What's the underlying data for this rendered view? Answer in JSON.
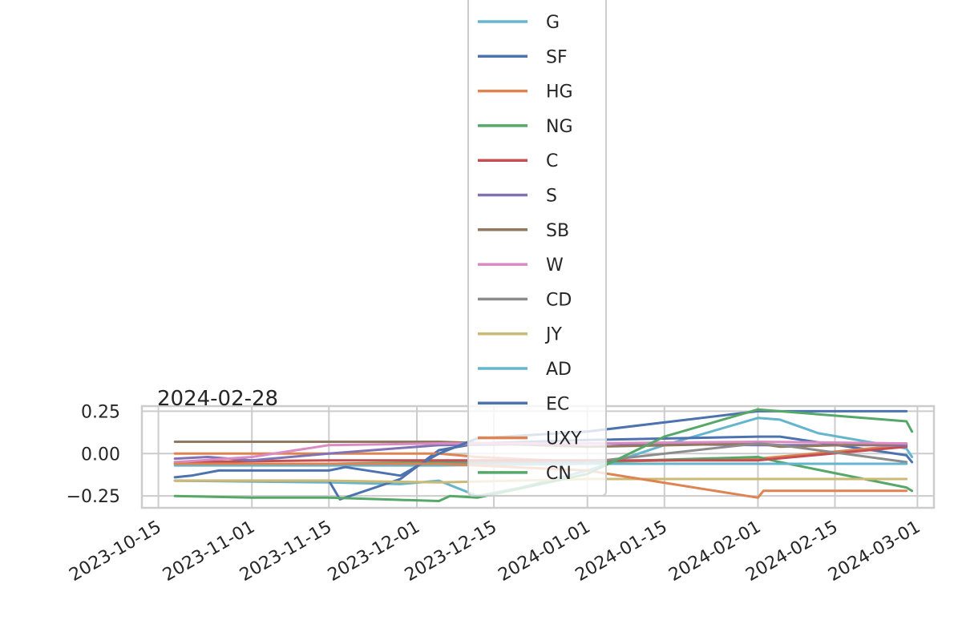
{
  "chart_data": {
    "type": "line",
    "title": "2024-02-28",
    "xlabel": "",
    "ylabel": "",
    "xlim": [
      "2023-10-12",
      "2024-03-04"
    ],
    "ylim": [
      -0.32,
      0.28
    ],
    "x_ticks": [
      "2023-10-15",
      "2023-11-01",
      "2023-11-15",
      "2023-12-01",
      "2023-12-15",
      "2024-01-01",
      "2024-01-15",
      "2024-02-01",
      "2024-02-15",
      "2024-03-01"
    ],
    "y_ticks": [
      0.25,
      0.0,
      -0.25
    ],
    "y_tick_labels": [
      "0.25",
      "0.00",
      "−0.25"
    ],
    "grid": true,
    "legend": {
      "placement": "top-center",
      "entries": [
        "G",
        "SF",
        "HG",
        "NG",
        "C",
        "S",
        "SB",
        "W",
        "CD",
        "JY",
        "AD",
        "EC",
        "UXY",
        "CN"
      ]
    },
    "series": [
      {
        "name": "G",
        "color": "#64b5cd",
        "points": [
          [
            "2023-10-18",
            -0.16
          ],
          [
            "2023-11-15",
            -0.17
          ],
          [
            "2023-11-28",
            -0.18
          ],
          [
            "2023-12-05",
            -0.16
          ],
          [
            "2023-12-12",
            -0.25
          ],
          [
            "2023-12-20",
            -0.2
          ],
          [
            "2024-01-01",
            -0.1
          ],
          [
            "2024-01-15",
            0.05
          ],
          [
            "2024-02-01",
            0.21
          ],
          [
            "2024-02-05",
            0.2
          ],
          [
            "2024-02-12",
            0.12
          ],
          [
            "2024-02-28",
            0.03
          ],
          [
            "2024-02-29",
            -0.02
          ]
        ]
      },
      {
        "name": "SF",
        "color": "#4c72b0",
        "points": [
          [
            "2023-10-18",
            -0.16
          ],
          [
            "2023-10-26",
            -0.16
          ],
          [
            "2023-11-01",
            -0.16
          ],
          [
            "2023-11-15",
            -0.16
          ],
          [
            "2023-11-17",
            -0.27
          ],
          [
            "2023-11-28",
            -0.15
          ],
          [
            "2023-12-05",
            0.02
          ],
          [
            "2023-12-12",
            0.06
          ],
          [
            "2024-01-01",
            0.08
          ],
          [
            "2024-02-01",
            0.1
          ],
          [
            "2024-02-05",
            0.1
          ],
          [
            "2024-02-28",
            -0.01
          ],
          [
            "2024-02-29",
            -0.05
          ]
        ]
      },
      {
        "name": "HG",
        "color": "#dd8452",
        "points": [
          [
            "2023-10-18",
            0.0
          ],
          [
            "2023-11-15",
            0.0
          ],
          [
            "2023-11-28",
            0.0
          ],
          [
            "2023-12-05",
            0.0
          ],
          [
            "2023-12-12",
            -0.02
          ],
          [
            "2024-01-01",
            -0.05
          ],
          [
            "2024-02-01",
            -0.03
          ],
          [
            "2024-02-28",
            0.05
          ]
        ]
      },
      {
        "name": "NG",
        "color": "#55a868",
        "points": [
          [
            "2023-10-18",
            -0.06
          ],
          [
            "2023-11-15",
            -0.06
          ],
          [
            "2023-12-05",
            -0.05
          ],
          [
            "2024-01-01",
            -0.05
          ],
          [
            "2024-02-01",
            -0.02
          ],
          [
            "2024-02-05",
            -0.05
          ],
          [
            "2024-02-28",
            -0.2
          ],
          [
            "2024-02-29",
            -0.22
          ]
        ]
      },
      {
        "name": "C",
        "color": "#c44e52",
        "points": [
          [
            "2023-10-18",
            -0.05
          ],
          [
            "2023-11-15",
            -0.04
          ],
          [
            "2023-12-05",
            -0.04
          ],
          [
            "2024-01-01",
            -0.04
          ],
          [
            "2024-02-01",
            -0.04
          ],
          [
            "2024-02-28",
            0.04
          ]
        ]
      },
      {
        "name": "S",
        "color": "#8172b3",
        "points": [
          [
            "2023-10-18",
            -0.03
          ],
          [
            "2023-10-24",
            -0.02
          ],
          [
            "2023-11-01",
            -0.04
          ],
          [
            "2023-11-15",
            0.0
          ],
          [
            "2023-12-05",
            0.05
          ],
          [
            "2024-01-01",
            0.06
          ],
          [
            "2024-02-01",
            0.05
          ],
          [
            "2024-02-28",
            0.05
          ]
        ]
      },
      {
        "name": "SB",
        "color": "#937860",
        "points": [
          [
            "2023-10-18",
            0.07
          ],
          [
            "2023-11-15",
            0.07
          ],
          [
            "2023-12-05",
            0.07
          ],
          [
            "2024-01-01",
            0.04
          ],
          [
            "2024-02-01",
            0.06
          ],
          [
            "2024-02-05",
            0.04
          ],
          [
            "2024-02-28",
            0.06
          ]
        ]
      },
      {
        "name": "W",
        "color": "#da8bc3",
        "points": [
          [
            "2023-10-18",
            -0.05
          ],
          [
            "2023-11-01",
            -0.02
          ],
          [
            "2023-11-15",
            0.05
          ],
          [
            "2023-12-05",
            0.06
          ],
          [
            "2024-01-01",
            0.06
          ],
          [
            "2024-02-01",
            0.07
          ],
          [
            "2024-02-28",
            0.06
          ]
        ]
      },
      {
        "name": "CD",
        "color": "#8c8c8c",
        "points": [
          [
            "2023-10-18",
            -0.06
          ],
          [
            "2023-11-15",
            -0.06
          ],
          [
            "2023-12-05",
            -0.06
          ],
          [
            "2024-01-01",
            -0.05
          ],
          [
            "2024-02-01",
            0.06
          ],
          [
            "2024-02-05",
            0.05
          ],
          [
            "2024-02-28",
            -0.05
          ]
        ]
      },
      {
        "name": "JY",
        "color": "#ccb974",
        "points": [
          [
            "2023-10-18",
            -0.16
          ],
          [
            "2023-11-15",
            -0.16
          ],
          [
            "2023-12-05",
            -0.17
          ],
          [
            "2024-01-01",
            -0.15
          ],
          [
            "2024-02-01",
            -0.15
          ],
          [
            "2024-02-28",
            -0.15
          ]
        ]
      },
      {
        "name": "AD",
        "color": "#64b5cd",
        "points": [
          [
            "2023-10-18",
            -0.07
          ],
          [
            "2023-11-15",
            -0.07
          ],
          [
            "2023-12-05",
            -0.07
          ],
          [
            "2024-01-01",
            -0.06
          ],
          [
            "2024-02-01",
            -0.06
          ],
          [
            "2024-02-28",
            -0.06
          ]
        ]
      },
      {
        "name": "EC",
        "color": "#4c72b0",
        "points": [
          [
            "2023-10-18",
            -0.14
          ],
          [
            "2023-10-21",
            -0.13
          ],
          [
            "2023-10-26",
            -0.1
          ],
          [
            "2023-11-15",
            -0.1
          ],
          [
            "2023-11-18",
            -0.08
          ],
          [
            "2023-11-28",
            -0.13
          ],
          [
            "2023-12-05",
            0.0
          ],
          [
            "2023-12-12",
            0.09
          ],
          [
            "2024-01-01",
            0.13
          ],
          [
            "2024-02-01",
            0.25
          ],
          [
            "2024-02-28",
            0.25
          ]
        ]
      },
      {
        "name": "UXY",
        "color": "#dd8452",
        "points": [
          [
            "2023-10-18",
            -0.06
          ],
          [
            "2023-11-15",
            -0.06
          ],
          [
            "2023-12-05",
            -0.06
          ],
          [
            "2024-01-01",
            -0.1
          ],
          [
            "2024-02-01",
            -0.26
          ],
          [
            "2024-02-02",
            -0.22
          ],
          [
            "2024-02-28",
            -0.22
          ]
        ]
      },
      {
        "name": "CN",
        "color": "#55a868",
        "points": [
          [
            "2023-10-18",
            -0.25
          ],
          [
            "2023-11-01",
            -0.26
          ],
          [
            "2023-11-15",
            -0.26
          ],
          [
            "2023-12-05",
            -0.28
          ],
          [
            "2023-12-07",
            -0.25
          ],
          [
            "2023-12-12",
            -0.26
          ],
          [
            "2024-01-01",
            -0.12
          ],
          [
            "2024-01-15",
            0.1
          ],
          [
            "2024-02-01",
            0.26
          ],
          [
            "2024-02-05",
            0.25
          ],
          [
            "2024-02-28",
            0.19
          ],
          [
            "2024-02-29",
            0.13
          ]
        ]
      }
    ]
  }
}
